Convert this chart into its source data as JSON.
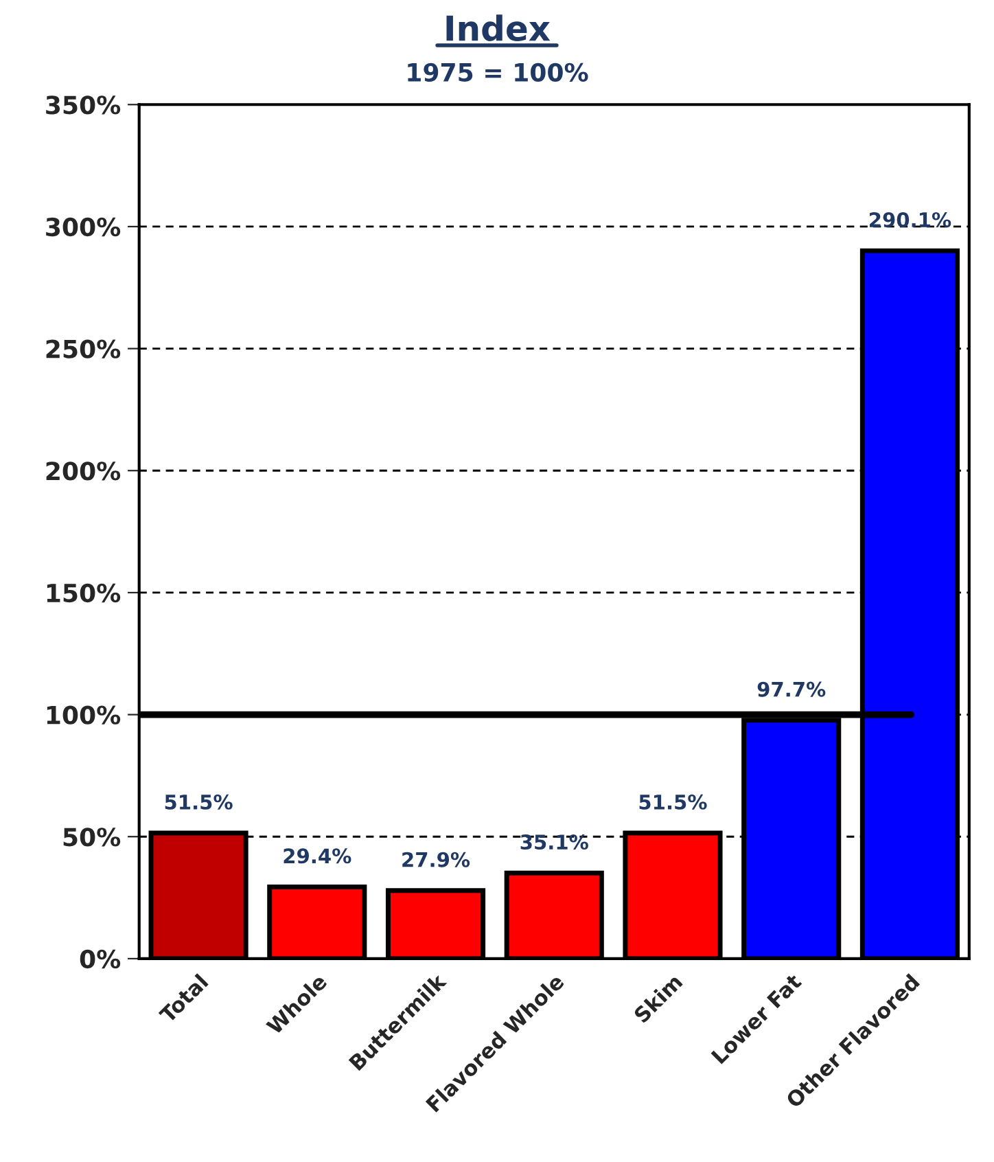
{
  "chart_data": {
    "type": "bar",
    "title": "Index",
    "subtitle": "1975 = 100%",
    "categories": [
      "Total",
      "Whole",
      "Buttermilk",
      "Flavored Whole",
      "Skim",
      "Lower Fat",
      "Other Flavored"
    ],
    "values": [
      51.5,
      29.4,
      27.9,
      35.1,
      51.5,
      97.7,
      290.1
    ],
    "colors": [
      "#c00000",
      "#ff0000",
      "#ff0000",
      "#ff0000",
      "#ff0000",
      "#0000ff",
      "#0000ff"
    ],
    "value_labels": [
      "51.5%",
      "29.4%",
      "27.9%",
      "35.1%",
      "51.5%",
      "97.7%",
      "290.1%"
    ],
    "ylim": [
      0,
      350
    ],
    "yticks": [
      {
        "value": 0,
        "label": "0%"
      },
      {
        "value": 50,
        "label": "50%"
      },
      {
        "value": 100,
        "label": "100%"
      },
      {
        "value": 150,
        "label": "150%"
      },
      {
        "value": 200,
        "label": "200%"
      },
      {
        "value": 250,
        "label": "250%"
      },
      {
        "value": 300,
        "label": "300%"
      },
      {
        "value": 350,
        "label": "350%"
      }
    ],
    "grid": "y",
    "ref_lines": [
      {
        "axis": "y",
        "value": 100,
        "color": "#000000",
        "line_style": "solid"
      }
    ]
  }
}
